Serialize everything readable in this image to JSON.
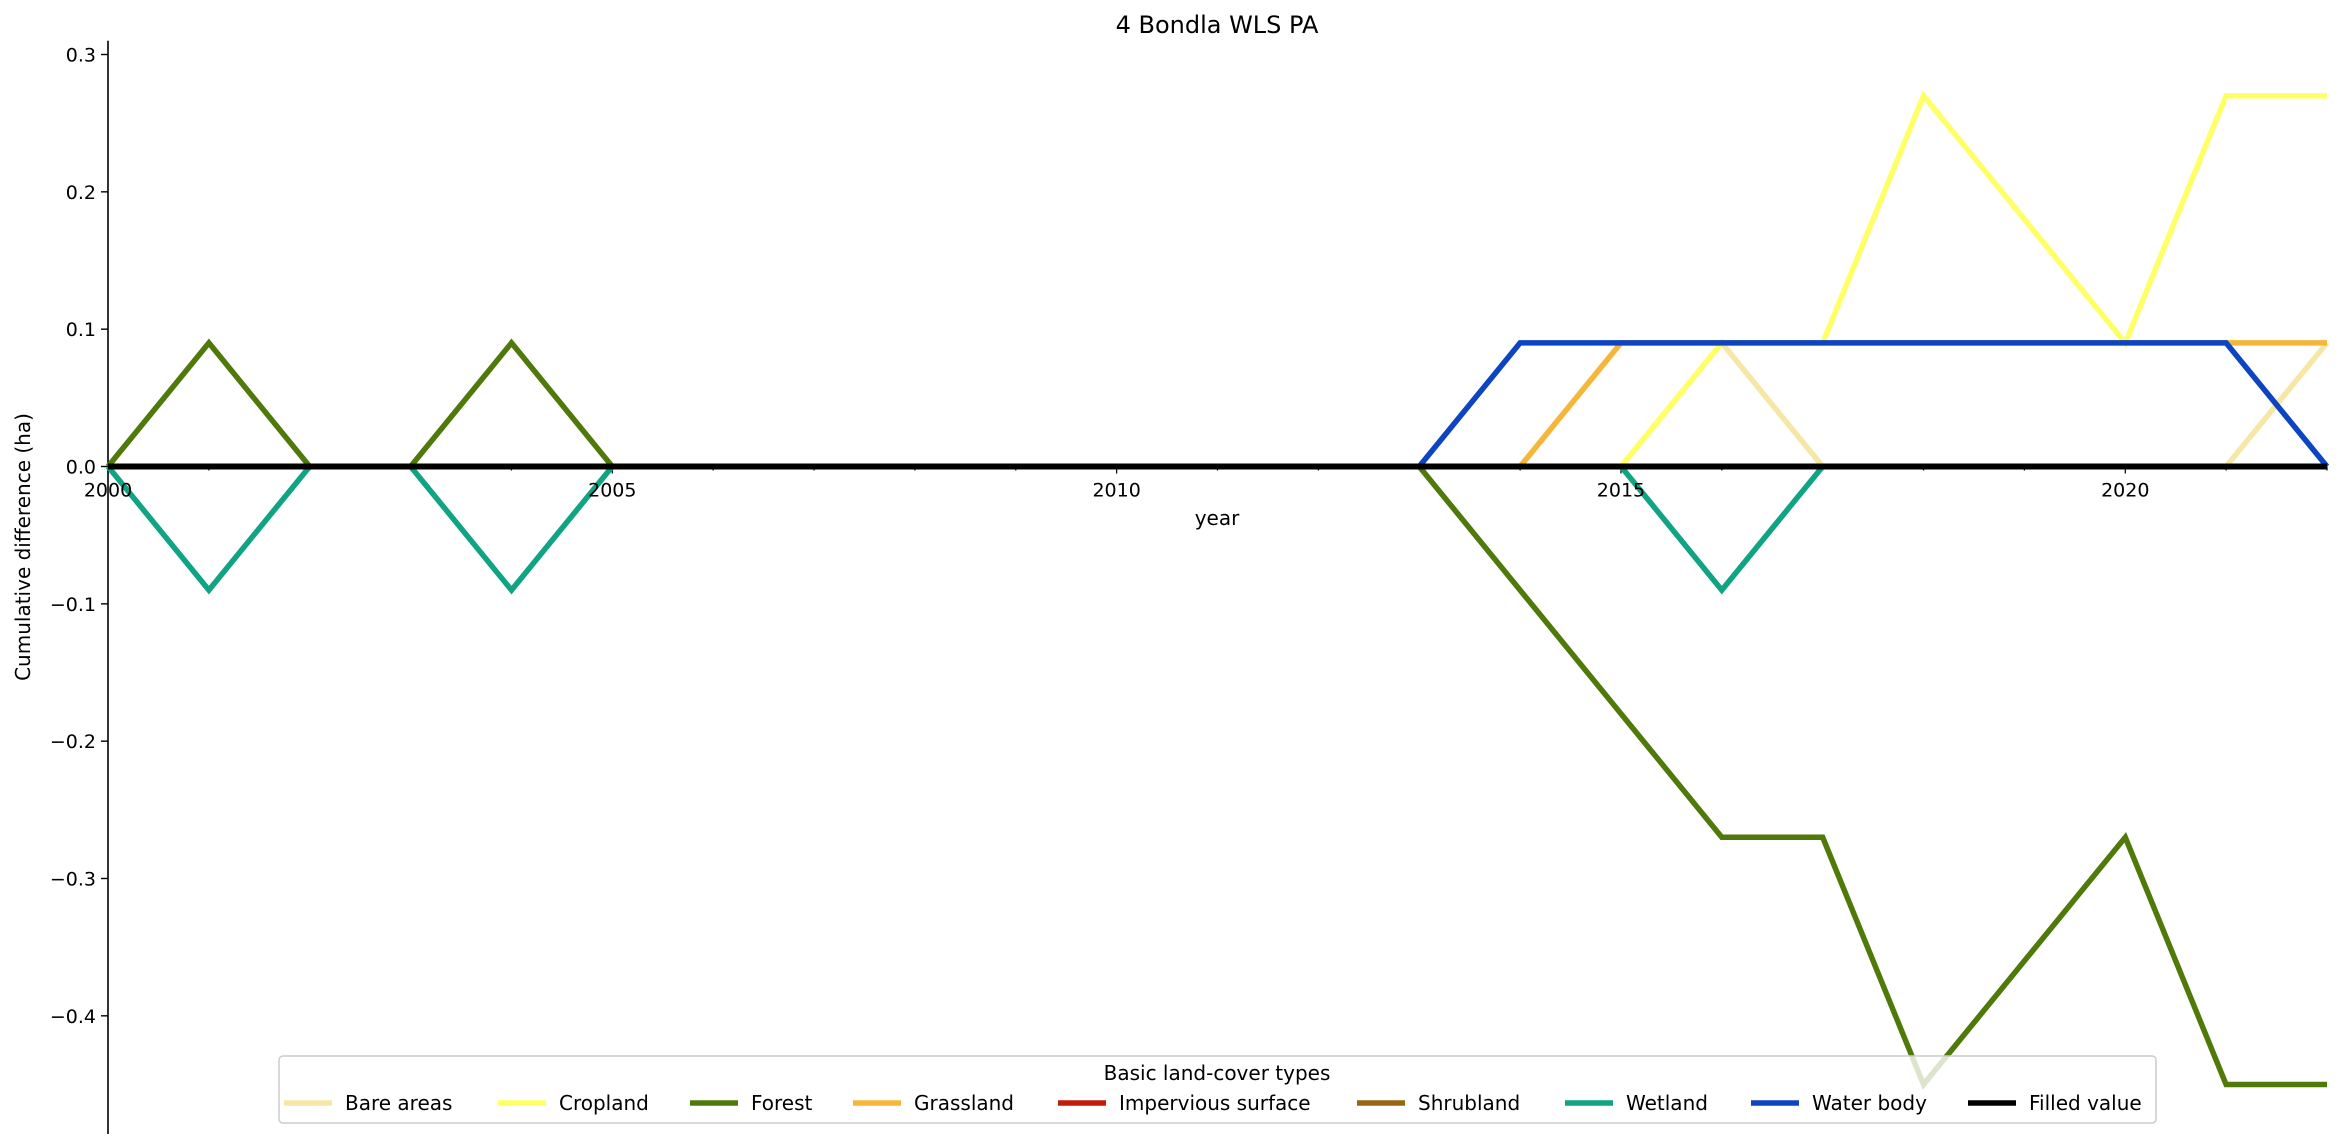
{
  "chart_data": {
    "type": "line",
    "title": "4 Bondla WLS PA",
    "xlabel": "year",
    "ylabel": "Cumulative difference (ha)",
    "xlim": [
      2000,
      2022
    ],
    "ylim": [
      -0.48,
      0.31
    ],
    "x_ticks": [
      2000,
      2005,
      2010,
      2015,
      2020
    ],
    "y_ticks": [
      -0.4,
      -0.3,
      -0.2,
      -0.1,
      0.0,
      0.1,
      0.2,
      0.3
    ],
    "y_tick_labels": [
      "−0.4",
      "−0.3",
      "−0.2",
      "−0.1",
      "0.0",
      "0.1",
      "0.2",
      "0.3"
    ],
    "grid": false,
    "legend": {
      "title": "Basic land-cover types",
      "placement": "lower center"
    },
    "x": [
      2000,
      2001,
      2002,
      2003,
      2004,
      2005,
      2006,
      2007,
      2008,
      2009,
      2010,
      2011,
      2012,
      2013,
      2014,
      2015,
      2016,
      2017,
      2018,
      2019,
      2020,
      2021,
      2022
    ],
    "series": [
      {
        "name": "Bare areas",
        "color": "#f7e7a6",
        "values": [
          0,
          0,
          0,
          0,
          0,
          0,
          0,
          0,
          0,
          0,
          0,
          0,
          0,
          0,
          0,
          0,
          0.09,
          0,
          0,
          0,
          0,
          0,
          0.09
        ]
      },
      {
        "name": "Cropland",
        "color": "#ffff66",
        "values": [
          0,
          0,
          0,
          0,
          0,
          0,
          0,
          0,
          0,
          0,
          0,
          0,
          0,
          0,
          0,
          0,
          0.09,
          0.09,
          0.27,
          0.18,
          0.09,
          0.27,
          0.27
        ]
      },
      {
        "name": "Forest",
        "color": "#4f7a0a",
        "values": [
          0,
          0.09,
          0,
          0,
          0.09,
          0,
          0,
          0,
          0,
          0,
          0,
          0,
          0,
          0,
          -0.09,
          -0.18,
          -0.27,
          -0.27,
          -0.45,
          -0.36,
          -0.27,
          -0.45,
          -0.45
        ]
      },
      {
        "name": "Grassland",
        "color": "#f5b63a",
        "values": [
          0,
          0,
          0,
          0,
          0,
          0,
          0,
          0,
          0,
          0,
          0,
          0,
          0,
          0,
          0,
          0.09,
          0.09,
          0.09,
          0.09,
          0.09,
          0.09,
          0.09,
          0.09
        ]
      },
      {
        "name": "Impervious surface",
        "color": "#c41a0a",
        "values": [
          0,
          0,
          0,
          0,
          0,
          0,
          0,
          0,
          0,
          0,
          0,
          0,
          0,
          0,
          0,
          0,
          0,
          0,
          0,
          0,
          0,
          0,
          0
        ]
      },
      {
        "name": "Shrubland",
        "color": "#9a6510",
        "values": [
          0,
          0,
          0,
          0,
          0,
          0,
          0,
          0,
          0,
          0,
          0,
          0,
          0,
          0,
          0,
          0,
          0,
          0,
          0,
          0,
          0,
          0,
          0
        ]
      },
      {
        "name": "Wetland",
        "color": "#10a384",
        "values": [
          0,
          -0.09,
          0,
          0,
          -0.09,
          0,
          0,
          0,
          0,
          0,
          0,
          0,
          0,
          0,
          0,
          0,
          -0.09,
          0,
          0,
          0,
          0,
          0,
          0
        ]
      },
      {
        "name": "Water body",
        "color": "#0d44c2",
        "values": [
          0,
          0,
          0,
          0,
          0,
          0,
          0,
          0,
          0,
          0,
          0,
          0,
          0,
          0,
          0.09,
          0.09,
          0.09,
          0.09,
          0.09,
          0.09,
          0.09,
          0.09,
          0
        ]
      },
      {
        "name": "Filled value",
        "color": "#000000",
        "values": [
          0,
          0,
          0,
          0,
          0,
          0,
          0,
          0,
          0,
          0,
          0,
          0,
          0,
          0,
          0,
          0,
          0,
          0,
          0,
          0,
          0,
          0,
          0
        ]
      }
    ]
  }
}
